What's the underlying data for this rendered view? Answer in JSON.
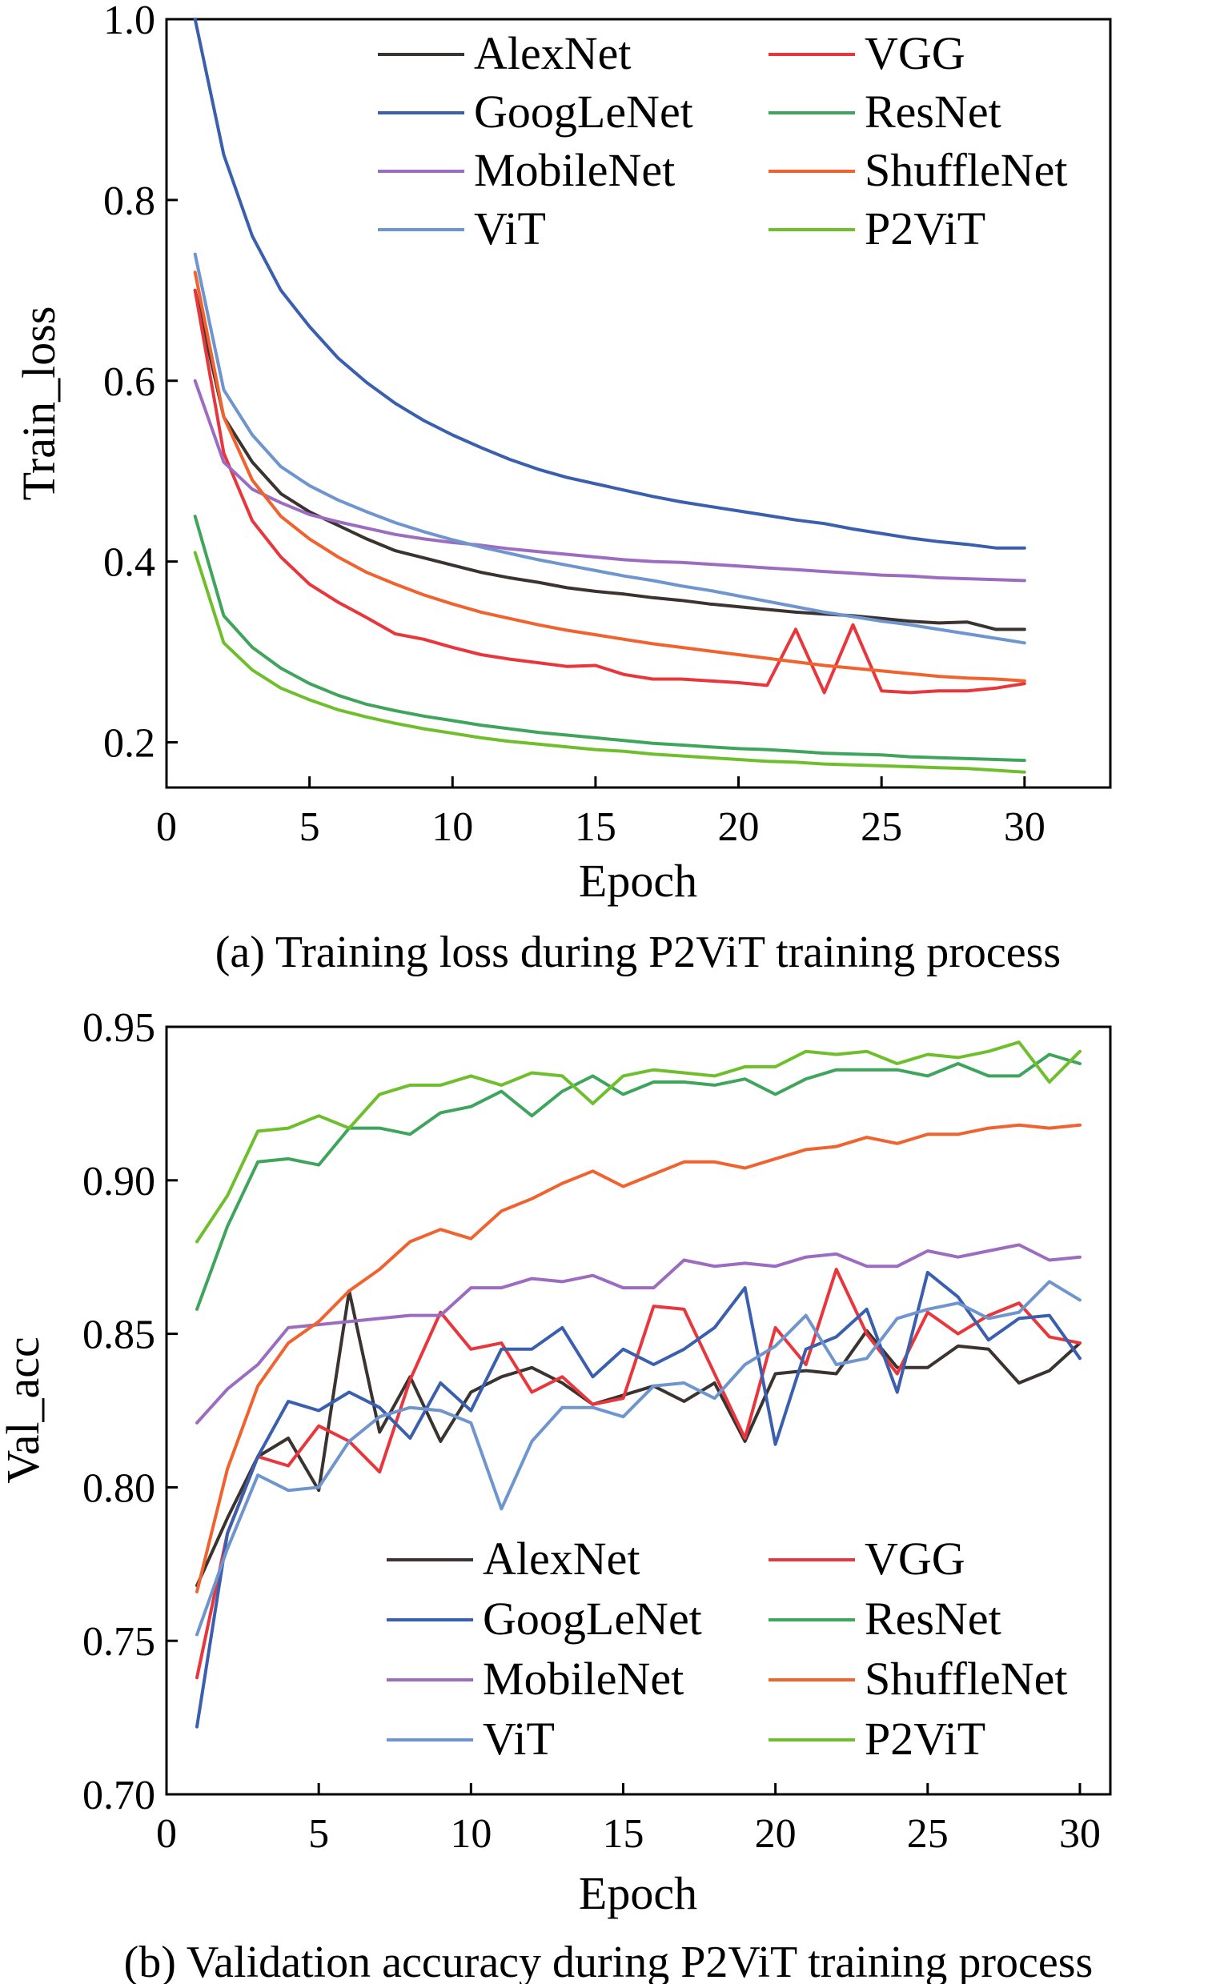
{
  "chart_data": [
    {
      "type": "line",
      "caption": "(a) Training loss during P2ViT training process",
      "xlabel": "Epoch",
      "ylabel": "Train_loss",
      "xlim": [
        0,
        33
      ],
      "ylim": [
        0.15,
        1.0
      ],
      "xticks": [
        0,
        5,
        10,
        15,
        20,
        25,
        30
      ],
      "yticks": [
        0.2,
        0.4,
        0.6,
        0.8,
        1.0
      ],
      "ytick_labels": [
        "0.2",
        "0.4",
        "0.6",
        "0.8",
        "1.0"
      ],
      "grid": false,
      "legend_position": "top-right",
      "x": [
        1,
        2,
        3,
        4,
        5,
        6,
        7,
        8,
        9,
        10,
        11,
        12,
        13,
        14,
        15,
        16,
        17,
        18,
        19,
        20,
        21,
        22,
        23,
        24,
        25,
        26,
        27,
        28,
        29,
        30
      ],
      "series": [
        {
          "name": "AlexNet",
          "color": "#3a3330",
          "values": [
            0.7,
            0.56,
            0.51,
            0.475,
            0.455,
            0.44,
            0.425,
            0.412,
            0.404,
            0.396,
            0.388,
            0.382,
            0.377,
            0.371,
            0.367,
            0.364,
            0.36,
            0.357,
            0.353,
            0.35,
            0.347,
            0.344,
            0.342,
            0.34,
            0.337,
            0.334,
            0.332,
            0.333,
            0.325,
            0.325
          ]
        },
        {
          "name": "VGG",
          "color": "#e8363c",
          "values": [
            0.7,
            0.52,
            0.445,
            0.405,
            0.375,
            0.355,
            0.338,
            0.32,
            0.314,
            0.305,
            0.297,
            0.292,
            0.288,
            0.284,
            0.285,
            0.275,
            0.27,
            0.27,
            0.268,
            0.266,
            0.263,
            0.325,
            0.255,
            0.33,
            0.257,
            0.255,
            0.257,
            0.257,
            0.26,
            0.265
          ]
        },
        {
          "name": "GoogLeNet",
          "color": "#3a5fae",
          "values": [
            1.0,
            0.85,
            0.76,
            0.7,
            0.66,
            0.625,
            0.598,
            0.575,
            0.556,
            0.54,
            0.526,
            0.513,
            0.502,
            0.493,
            0.486,
            0.479,
            0.472,
            0.466,
            0.461,
            0.456,
            0.451,
            0.446,
            0.442,
            0.436,
            0.431,
            0.426,
            0.422,
            0.419,
            0.415,
            0.415
          ]
        },
        {
          "name": "ResNet",
          "color": "#3fa55c",
          "values": [
            0.45,
            0.34,
            0.305,
            0.282,
            0.265,
            0.252,
            0.242,
            0.235,
            0.229,
            0.224,
            0.219,
            0.215,
            0.211,
            0.208,
            0.205,
            0.202,
            0.199,
            0.197,
            0.195,
            0.193,
            0.192,
            0.19,
            0.188,
            0.187,
            0.186,
            0.184,
            0.183,
            0.182,
            0.181,
            0.18
          ]
        },
        {
          "name": "MobileNet",
          "color": "#9b6cc0",
          "values": [
            0.6,
            0.51,
            0.48,
            0.465,
            0.452,
            0.444,
            0.437,
            0.43,
            0.425,
            0.421,
            0.418,
            0.414,
            0.411,
            0.408,
            0.405,
            0.402,
            0.4,
            0.399,
            0.397,
            0.395,
            0.393,
            0.391,
            0.389,
            0.387,
            0.385,
            0.384,
            0.382,
            0.381,
            0.38,
            0.379
          ]
        },
        {
          "name": "ShuffleNet",
          "color": "#f0622e",
          "values": [
            0.72,
            0.56,
            0.49,
            0.45,
            0.425,
            0.405,
            0.388,
            0.375,
            0.363,
            0.353,
            0.344,
            0.337,
            0.33,
            0.324,
            0.319,
            0.314,
            0.309,
            0.305,
            0.301,
            0.297,
            0.293,
            0.289,
            0.285,
            0.282,
            0.279,
            0.276,
            0.273,
            0.271,
            0.27,
            0.268
          ]
        },
        {
          "name": "ViT",
          "color": "#6f95cf",
          "values": [
            0.74,
            0.59,
            0.54,
            0.505,
            0.484,
            0.468,
            0.455,
            0.443,
            0.433,
            0.424,
            0.416,
            0.409,
            0.402,
            0.396,
            0.39,
            0.384,
            0.379,
            0.373,
            0.368,
            0.362,
            0.356,
            0.35,
            0.344,
            0.339,
            0.334,
            0.33,
            0.325,
            0.32,
            0.315,
            0.31
          ]
        },
        {
          "name": "P2ViT",
          "color": "#6fbf2d",
          "values": [
            0.41,
            0.31,
            0.28,
            0.26,
            0.247,
            0.236,
            0.228,
            0.221,
            0.215,
            0.21,
            0.205,
            0.201,
            0.198,
            0.195,
            0.192,
            0.19,
            0.187,
            0.185,
            0.183,
            0.181,
            0.179,
            0.178,
            0.176,
            0.175,
            0.174,
            0.173,
            0.172,
            0.171,
            0.169,
            0.167
          ]
        }
      ]
    },
    {
      "type": "line",
      "caption": "(b) Validation accuracy during P2ViT training process",
      "xlabel": "Epoch",
      "ylabel": "Val_acc",
      "xlim": [
        0,
        31
      ],
      "ylim": [
        0.7,
        0.95
      ],
      "xticks": [
        0,
        5,
        10,
        15,
        20,
        25,
        30
      ],
      "yticks": [
        0.7,
        0.75,
        0.8,
        0.85,
        0.9,
        0.95
      ],
      "ytick_labels": [
        "0.70",
        "0.75",
        "0.80",
        "0.85",
        "0.90",
        "0.95"
      ],
      "grid": false,
      "legend_position": "bottom-right",
      "x": [
        1,
        2,
        3,
        4,
        5,
        6,
        7,
        8,
        9,
        10,
        11,
        12,
        13,
        14,
        15,
        16,
        17,
        18,
        19,
        20,
        21,
        22,
        23,
        24,
        25,
        26,
        27,
        28,
        29,
        30
      ],
      "series": [
        {
          "name": "AlexNet",
          "color": "#3a3330",
          "values": [
            0.768,
            0.79,
            0.81,
            0.816,
            0.799,
            0.864,
            0.818,
            0.836,
            0.815,
            0.831,
            0.836,
            0.839,
            0.834,
            0.827,
            0.83,
            0.833,
            0.828,
            0.834,
            0.815,
            0.837,
            0.838,
            0.837,
            0.851,
            0.839,
            0.839,
            0.846,
            0.845,
            0.834,
            0.838,
            0.847
          ]
        },
        {
          "name": "VGG",
          "color": "#e8363c",
          "values": [
            0.738,
            0.785,
            0.81,
            0.807,
            0.82,
            0.815,
            0.805,
            0.835,
            0.857,
            0.845,
            0.847,
            0.831,
            0.836,
            0.827,
            0.829,
            0.859,
            0.858,
            0.837,
            0.816,
            0.852,
            0.84,
            0.871,
            0.85,
            0.837,
            0.857,
            0.85,
            0.856,
            0.86,
            0.849,
            0.847
          ]
        },
        {
          "name": "GoogLeNet",
          "color": "#3a5fae",
          "values": [
            0.722,
            0.785,
            0.81,
            0.828,
            0.825,
            0.831,
            0.826,
            0.816,
            0.834,
            0.825,
            0.845,
            0.845,
            0.852,
            0.836,
            0.845,
            0.84,
            0.845,
            0.852,
            0.865,
            0.814,
            0.845,
            0.849,
            0.858,
            0.831,
            0.87,
            0.862,
            0.848,
            0.855,
            0.856,
            0.842
          ]
        },
        {
          "name": "ResNet",
          "color": "#3fa55c",
          "values": [
            0.858,
            0.885,
            0.906,
            0.907,
            0.905,
            0.917,
            0.917,
            0.915,
            0.922,
            0.924,
            0.929,
            0.921,
            0.929,
            0.934,
            0.928,
            0.932,
            0.932,
            0.931,
            0.933,
            0.928,
            0.933,
            0.936,
            0.936,
            0.936,
            0.934,
            0.938,
            0.934,
            0.934,
            0.941,
            0.938
          ]
        },
        {
          "name": "MobileNet",
          "color": "#9b6cc0",
          "values": [
            0.821,
            0.832,
            0.84,
            0.852,
            0.853,
            0.854,
            0.855,
            0.856,
            0.856,
            0.865,
            0.865,
            0.868,
            0.867,
            0.869,
            0.865,
            0.865,
            0.874,
            0.872,
            0.873,
            0.872,
            0.875,
            0.876,
            0.872,
            0.872,
            0.877,
            0.875,
            0.877,
            0.879,
            0.874,
            0.875
          ]
        },
        {
          "name": "ShuffleNet",
          "color": "#f0622e",
          "values": [
            0.766,
            0.806,
            0.833,
            0.847,
            0.854,
            0.864,
            0.871,
            0.88,
            0.884,
            0.881,
            0.89,
            0.894,
            0.899,
            0.903,
            0.898,
            0.902,
            0.906,
            0.906,
            0.904,
            0.907,
            0.91,
            0.911,
            0.914,
            0.912,
            0.915,
            0.915,
            0.917,
            0.918,
            0.917,
            0.918
          ]
        },
        {
          "name": "ViT",
          "color": "#6f95cf",
          "values": [
            0.752,
            0.78,
            0.804,
            0.799,
            0.8,
            0.815,
            0.823,
            0.826,
            0.825,
            0.821,
            0.793,
            0.815,
            0.826,
            0.826,
            0.823,
            0.833,
            0.834,
            0.829,
            0.84,
            0.846,
            0.856,
            0.84,
            0.842,
            0.855,
            0.858,
            0.86,
            0.855,
            0.857,
            0.867,
            0.861
          ]
        },
        {
          "name": "P2ViT",
          "color": "#6fbf2d",
          "values": [
            0.88,
            0.895,
            0.916,
            0.917,
            0.921,
            0.917,
            0.928,
            0.931,
            0.931,
            0.934,
            0.931,
            0.935,
            0.934,
            0.925,
            0.934,
            0.936,
            0.935,
            0.934,
            0.937,
            0.937,
            0.942,
            0.941,
            0.942,
            0.938,
            0.941,
            0.94,
            0.942,
            0.945,
            0.932,
            0.942
          ]
        }
      ]
    }
  ]
}
